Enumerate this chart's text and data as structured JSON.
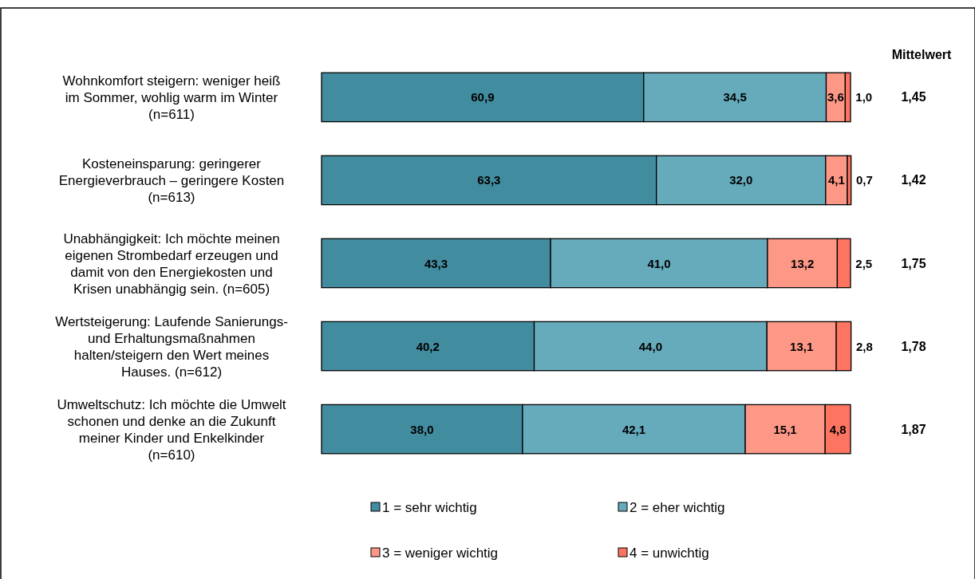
{
  "chart_data": {
    "type": "bar",
    "orientation": "horizontal",
    "stacked": true,
    "legend": "bottom",
    "tick_labels": false,
    "xlim": [
      0,
      100
    ],
    "categories": [
      "Wohnkomfort steigern: weniger heiß\nim Sommer, wohlig warm im Winter\n(n=611)",
      "Kosteneinsparung: geringerer\nEnergieverbrauch – geringere Kosten\n(n=613)",
      "Unabhängigkeit: Ich möchte meinen\neigenen Strombedarf erzeugen und\ndamit von den Energiekosten und\nKrisen unabhängig sein. (n=605)",
      "Wertsteigerung: Laufende Sanierungs-\nund Erhaltungsmaßnahmen\nhalten/steigern den Wert meines\nHauses. (n=612)",
      "Umweltschutz: Ich möchte die Umwelt\nschonen und denke an die Zukunft\nmeiner Kinder und Enkelkinder\n(n=610)"
    ],
    "series": [
      {
        "name": "1 = sehr wichtig",
        "color": "#428c9f",
        "values": [
          60.9,
          63.3,
          43.3,
          40.2,
          38.0
        ],
        "value_labels": [
          "60,9",
          "63,3",
          "43,3",
          "40,2",
          "38,0"
        ]
      },
      {
        "name": "2 = eher wichtig",
        "color": "#66abbc",
        "values": [
          34.5,
          32.0,
          41.0,
          44.0,
          42.1
        ],
        "value_labels": [
          "34,5",
          "32,0",
          "41,0",
          "44,0",
          "42,1"
        ]
      },
      {
        "name": "3 = weniger wichtig",
        "color": "#fe9886",
        "values": [
          3.6,
          4.1,
          13.2,
          13.1,
          15.1
        ],
        "value_labels": [
          "3,6",
          "4,1",
          "13,2",
          "13,1",
          "15,1"
        ]
      },
      {
        "name": "4 = unwichtig",
        "color": "#fd7560",
        "values": [
          1.0,
          0.7,
          2.5,
          2.8,
          4.8
        ],
        "value_labels": [
          "1,0",
          "0,7",
          "2,5",
          "2,8",
          "4,8"
        ]
      }
    ],
    "annotations": [
      "Mittelwert",
      "1,45",
      "1,42",
      "1,75",
      "1,78",
      "1,87"
    ]
  }
}
